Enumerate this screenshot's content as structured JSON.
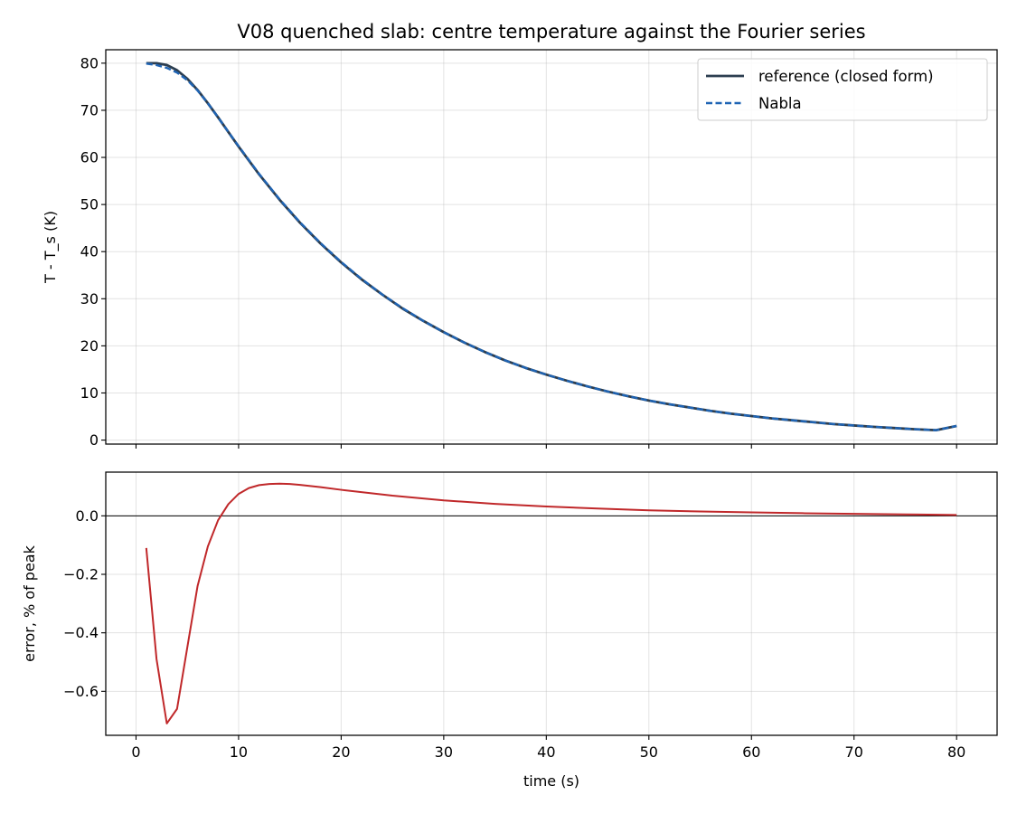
{
  "chart_data": [
    {
      "type": "line",
      "title": "V08 quenched slab: centre temperature against the Fourier series",
      "xlabel": "",
      "ylabel": "T - T_s (K)",
      "xlim": [
        -2.95,
        83.95
      ],
      "ylim": [
        -0.85,
        82.85
      ],
      "xticks": [
        0,
        10,
        20,
        30,
        40,
        50,
        60,
        70,
        80
      ],
      "yticks": [
        0,
        10,
        20,
        30,
        40,
        50,
        60,
        70,
        80
      ],
      "ytick_labels": [
        "0",
        "10",
        "20",
        "30",
        "40",
        "50",
        "60",
        "70",
        "80"
      ],
      "grid": true,
      "legend": "top-right",
      "series": [
        {
          "name": "reference (closed form)",
          "color": "#2c3e50",
          "style": "solid",
          "x": [
            1,
            2,
            3,
            4,
            5,
            6,
            7,
            8,
            9,
            10,
            12,
            14,
            16,
            18,
            20,
            22,
            24,
            26,
            28,
            30,
            32,
            34,
            36,
            38,
            40,
            42,
            44,
            46,
            48,
            50,
            52,
            54,
            56,
            58,
            60,
            62,
            64,
            66,
            68,
            70,
            72,
            74,
            76,
            78,
            80
          ],
          "y": [
            80.0,
            80.0,
            79.6,
            78.5,
            76.7,
            74.3,
            71.5,
            68.5,
            65.4,
            62.3,
            56.4,
            51.0,
            46.1,
            41.7,
            37.7,
            34.1,
            30.9,
            27.9,
            25.3,
            22.9,
            20.7,
            18.7,
            16.9,
            15.3,
            13.9,
            12.6,
            11.4,
            10.3,
            9.3,
            8.4,
            7.6,
            6.9,
            6.2,
            5.6,
            5.1,
            4.6,
            4.2,
            3.8,
            3.4,
            3.1,
            2.8,
            2.55,
            2.3,
            2.1,
            3.0
          ]
        },
        {
          "name": "Nabla",
          "color": "#1f64b4",
          "style": "dashed",
          "x": [
            1,
            2,
            3,
            4,
            5,
            6,
            7,
            8,
            9,
            10,
            12,
            14,
            16,
            18,
            20,
            22,
            24,
            26,
            28,
            30,
            32,
            34,
            36,
            38,
            40,
            42,
            44,
            46,
            48,
            50,
            52,
            54,
            56,
            58,
            60,
            62,
            64,
            66,
            68,
            70,
            72,
            74,
            76,
            78,
            80
          ],
          "y": [
            79.9,
            79.6,
            79.0,
            78.0,
            76.4,
            74.2,
            71.5,
            68.5,
            65.4,
            62.4,
            56.5,
            51.1,
            46.2,
            41.8,
            37.8,
            34.2,
            30.9,
            28.0,
            25.3,
            22.9,
            20.7,
            18.7,
            16.9,
            15.3,
            13.9,
            12.6,
            11.4,
            10.3,
            9.3,
            8.4,
            7.6,
            6.9,
            6.2,
            5.6,
            5.1,
            4.6,
            4.2,
            3.8,
            3.4,
            3.1,
            2.8,
            2.55,
            2.3,
            2.1,
            3.0
          ]
        }
      ]
    },
    {
      "type": "line",
      "title": "",
      "xlabel": "time (s)",
      "ylabel": "error, % of peak",
      "xlim": [
        -2.95,
        83.95
      ],
      "ylim": [
        -0.7505,
        0.1495
      ],
      "xticks": [
        0,
        10,
        20,
        30,
        40,
        50,
        60,
        70,
        80
      ],
      "xtick_labels": [
        "0",
        "10",
        "20",
        "30",
        "40",
        "50",
        "60",
        "70",
        "80"
      ],
      "yticks": [
        -0.6,
        -0.4,
        -0.2,
        0.0
      ],
      "ytick_labels": [
        "−0.6",
        "−0.4",
        "−0.2",
        "0.0"
      ],
      "grid": true,
      "zero_line": true,
      "series": [
        {
          "name": "",
          "color": "#c0282a",
          "style": "solid",
          "x": [
            1,
            2,
            3,
            4,
            5,
            6,
            7,
            8,
            9,
            10,
            11,
            12,
            13,
            14,
            15,
            16,
            18,
            20,
            25,
            30,
            35,
            40,
            45,
            50,
            55,
            60,
            65,
            70,
            75,
            80
          ],
          "y": [
            -0.11,
            -0.49,
            -0.71,
            -0.66,
            -0.45,
            -0.24,
            -0.105,
            -0.015,
            0.04,
            0.075,
            0.095,
            0.105,
            0.109,
            0.11,
            0.109,
            0.106,
            0.098,
            0.089,
            0.069,
            0.053,
            0.041,
            0.032,
            0.025,
            0.019,
            0.015,
            0.012,
            0.009,
            0.007,
            0.005,
            0.003
          ]
        }
      ]
    }
  ]
}
